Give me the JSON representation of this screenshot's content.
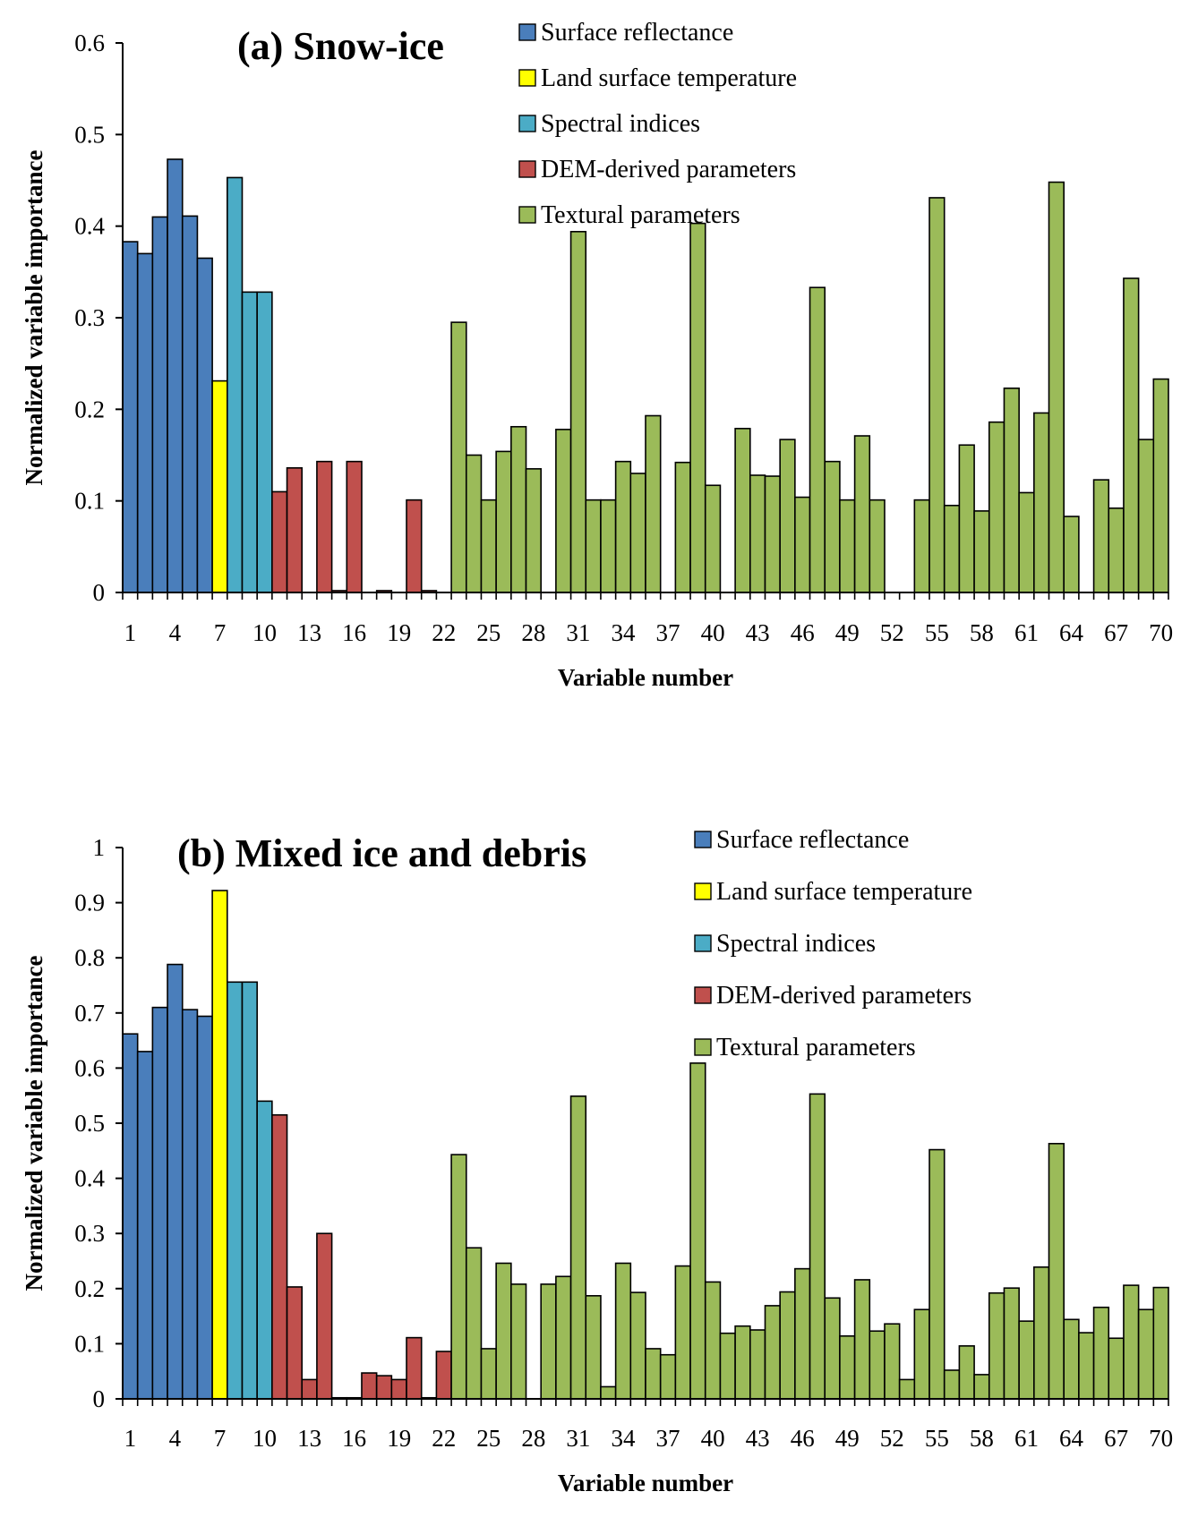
{
  "colors": {
    "Surface reflectance": "#4a7ebb",
    "Land surface temperature": "#ffff00",
    "Spectral indices": "#4bacc6",
    "DEM-derived parameters": "#c0504d",
    "Textural parameters": "#9bbb59"
  },
  "chart_data": [
    {
      "type": "bar",
      "title": "(a) Snow-ice",
      "xlabel": "Variable number",
      "ylabel": "Normalized variable importance",
      "ylim": [
        0,
        0.6
      ],
      "yticks": [
        "0",
        "0.1",
        "0.2",
        "0.3",
        "0.4",
        "0.5",
        "0.6"
      ],
      "xticks": [
        "1",
        "4",
        "7",
        "10",
        "13",
        "16",
        "19",
        "22",
        "25",
        "28",
        "31",
        "34",
        "37",
        "40",
        "43",
        "46",
        "49",
        "52",
        "55",
        "58",
        "61",
        "64",
        "67",
        "70"
      ],
      "grid": false,
      "legend": [
        "Surface reflectance",
        "Land surface temperature",
        "Spectral indices",
        "DEM-derived parameters",
        "Textural parameters"
      ],
      "groups": {
        "Surface reflectance": [
          1,
          6
        ],
        "Land surface temperature": [
          7,
          7
        ],
        "Spectral indices": [
          8,
          10
        ],
        "DEM-derived parameters": [
          11,
          21
        ],
        "Textural parameters": [
          22,
          70
        ]
      },
      "values": [
        0.383,
        0.37,
        0.41,
        0.473,
        0.411,
        0.365,
        0.231,
        0.453,
        0.328,
        0.328,
        0.11,
        0.136,
        0,
        0.143,
        0.002,
        0.143,
        0,
        0.002,
        0,
        0.101,
        0.002,
        0,
        0.295,
        0.15,
        0.101,
        0.154,
        0.181,
        0.135,
        0,
        0.178,
        0.394,
        0.101,
        0.101,
        0.143,
        0.13,
        0.193,
        0,
        0.142,
        0.403,
        0.117,
        0,
        0.179,
        0.128,
        0.127,
        0.167,
        0.104,
        0.333,
        0.143,
        0.101,
        0.171,
        0.101,
        0,
        0,
        0.101,
        0.431,
        0.095,
        0.161,
        0.089,
        0.186,
        0.223,
        0.109,
        0.196,
        0.448,
        0.083,
        0,
        0.123,
        0.092,
        0.343,
        0.167,
        0.233
      ]
    },
    {
      "type": "bar",
      "title": "(b) Mixed ice and debris",
      "xlabel": "Variable number",
      "ylabel": "Normalized variable importance",
      "ylim": [
        0,
        1
      ],
      "yticks": [
        "0",
        "0.1",
        "0.2",
        "0.3",
        "0.4",
        "0.5",
        "0.6",
        "0.7",
        "0.8",
        "0.9",
        "1"
      ],
      "xticks": [
        "1",
        "4",
        "7",
        "10",
        "13",
        "16",
        "19",
        "22",
        "25",
        "28",
        "31",
        "34",
        "37",
        "40",
        "43",
        "46",
        "49",
        "52",
        "55",
        "58",
        "61",
        "64",
        "67",
        "70"
      ],
      "grid": false,
      "legend": [
        "Surface reflectance",
        "Land surface temperature",
        "Spectral indices",
        "DEM-derived parameters",
        "Textural parameters"
      ],
      "groups": {
        "Surface reflectance": [
          1,
          6
        ],
        "Land surface temperature": [
          7,
          7
        ],
        "Spectral indices": [
          8,
          10
        ],
        "DEM-derived parameters": [
          11,
          22
        ],
        "Textural parameters": [
          23,
          70
        ]
      },
      "values": [
        0.662,
        0.63,
        0.71,
        0.788,
        0.706,
        0.694,
        0.922,
        0.756,
        0.756,
        0.54,
        0.515,
        0.203,
        0.035,
        0.3,
        0.002,
        0.002,
        0.047,
        0.042,
        0.035,
        0.111,
        0.002,
        0.086,
        0.443,
        0.274,
        0.091,
        0.246,
        0.208,
        0,
        0.208,
        0.222,
        0.549,
        0.187,
        0.022,
        0.246,
        0.193,
        0.091,
        0.08,
        0.241,
        0.609,
        0.212,
        0.119,
        0.132,
        0.125,
        0.169,
        0.194,
        0.236,
        0.553,
        0.183,
        0.114,
        0.216,
        0.123,
        0.136,
        0.035,
        0.162,
        0.452,
        0.052,
        0.096,
        0.044,
        0.192,
        0.201,
        0.141,
        0.239,
        0.463,
        0.144,
        0.12,
        0.166,
        0.11,
        0.206,
        0.162,
        0.202
      ]
    }
  ]
}
